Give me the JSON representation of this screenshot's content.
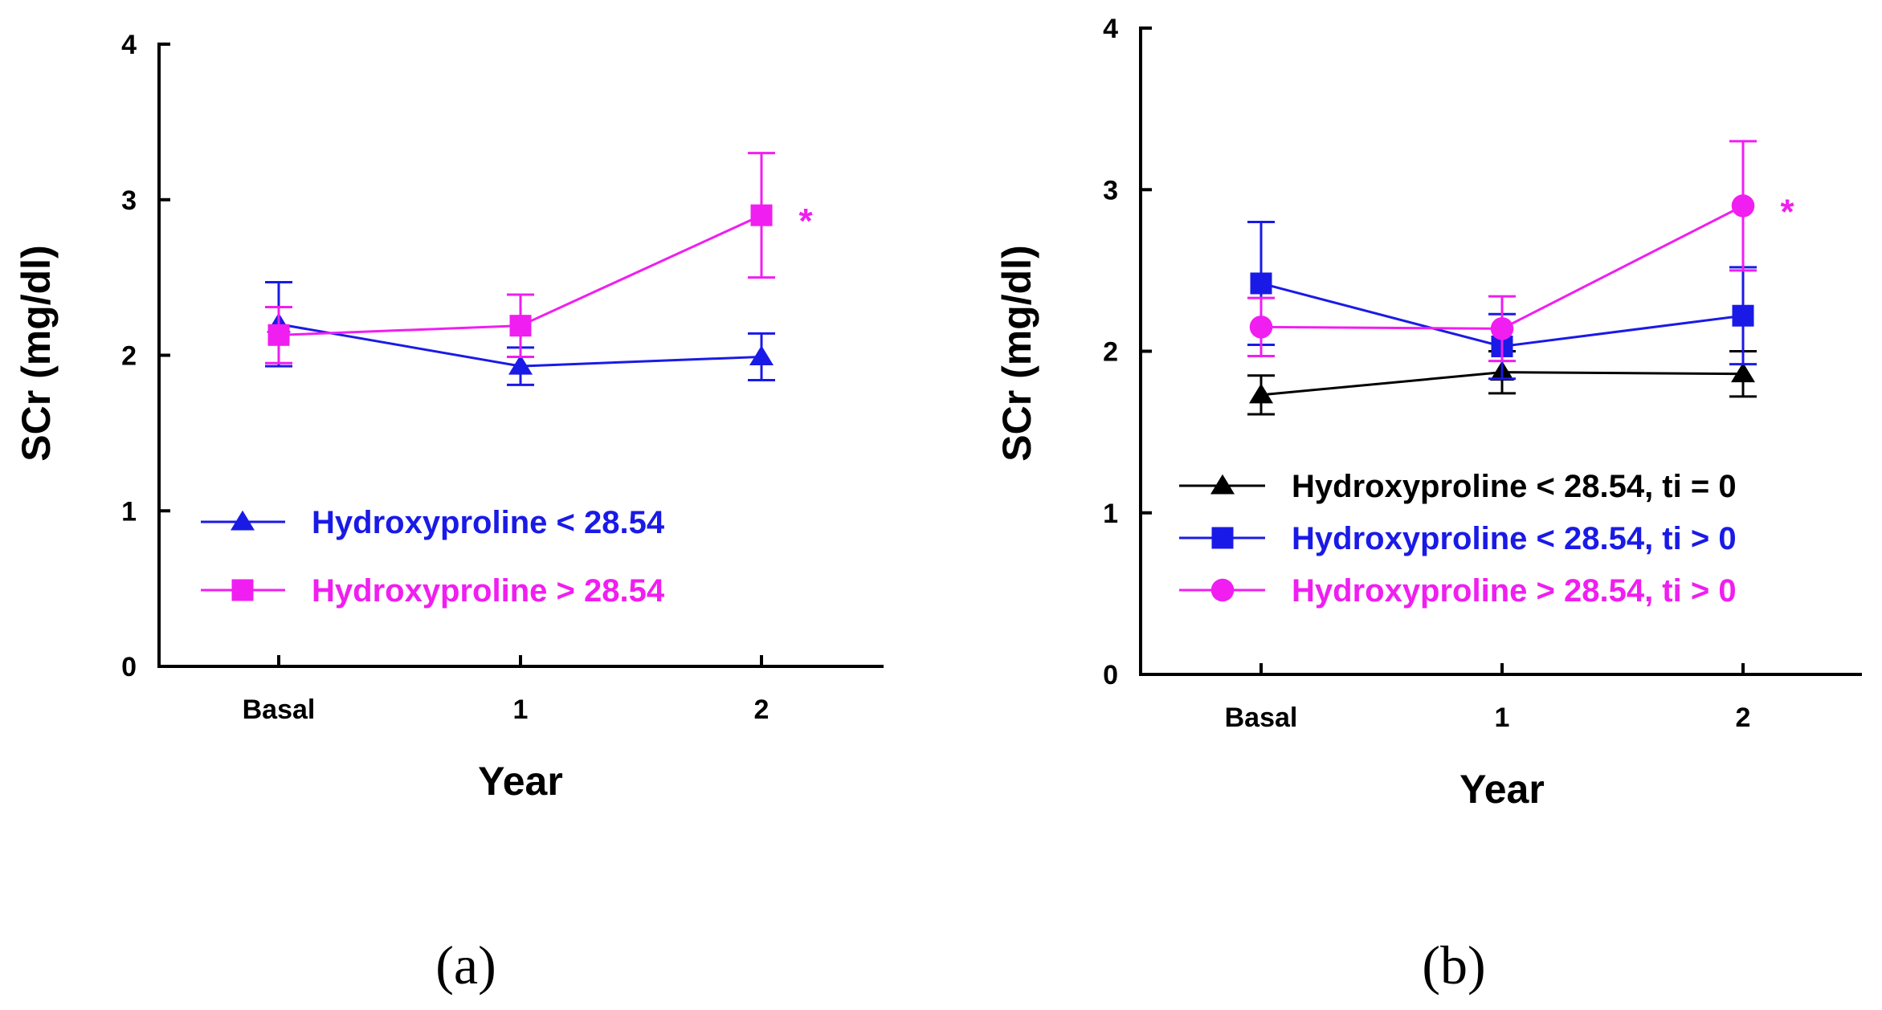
{
  "chart_data": [
    {
      "type": "line",
      "panel_label": "(a)",
      "xlabel": "Year",
      "ylabel": "SCr (mg/dl)",
      "categories": [
        "Basal",
        "1",
        "2"
      ],
      "yticks": [
        "0",
        "1",
        "2",
        "3",
        "4"
      ],
      "ylim": [
        0,
        4
      ],
      "series": [
        {
          "name": "Hydroxyproline < 28.54",
          "color": "#1a1ae6",
          "marker": "triangle",
          "values": [
            2.2,
            1.93,
            1.99
          ],
          "error": [
            0.27,
            0.12,
            0.15
          ]
        },
        {
          "name": "Hydroxyproline > 28.54",
          "color": "#f01ef0",
          "marker": "square",
          "values": [
            2.13,
            2.19,
            2.9
          ],
          "error": [
            0.18,
            0.2,
            0.4
          ]
        }
      ],
      "annotations": [
        {
          "text": "*",
          "category": "2",
          "color": "#f01ef0"
        }
      ]
    },
    {
      "type": "line",
      "panel_label": "(b)",
      "xlabel": "Year",
      "ylabel": "SCr (mg/dl)",
      "categories": [
        "Basal",
        "1",
        "2"
      ],
      "yticks": [
        "0",
        "1",
        "2",
        "3",
        "4"
      ],
      "ylim": [
        0,
        4
      ],
      "series": [
        {
          "name": "Hydroxyproline < 28.54, ti = 0",
          "color": "#000000",
          "marker": "triangle",
          "values": [
            1.73,
            1.87,
            1.86
          ],
          "error": [
            0.12,
            0.13,
            0.14
          ]
        },
        {
          "name": "Hydroxyproline < 28.54, ti > 0",
          "color": "#1a1ae6",
          "marker": "square",
          "values": [
            2.42,
            2.03,
            2.22
          ],
          "error": [
            0.38,
            0.2,
            0.3
          ]
        },
        {
          "name": "Hydroxyproline > 28.54, ti > 0",
          "color": "#f01ef0",
          "marker": "circle",
          "values": [
            2.15,
            2.14,
            2.9
          ],
          "error": [
            0.18,
            0.2,
            0.4
          ]
        }
      ],
      "annotations": [
        {
          "text": "*",
          "category": "2",
          "color": "#f01ef0"
        }
      ]
    }
  ]
}
